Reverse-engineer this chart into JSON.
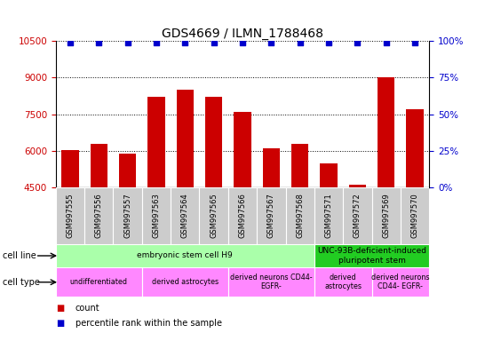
{
  "title": "GDS4669 / ILMN_1788468",
  "samples": [
    "GSM997555",
    "GSM997556",
    "GSM997557",
    "GSM997563",
    "GSM997564",
    "GSM997565",
    "GSM997566",
    "GSM997567",
    "GSM997568",
    "GSM997571",
    "GSM997572",
    "GSM997569",
    "GSM997570"
  ],
  "counts": [
    6050,
    6300,
    5900,
    8200,
    8500,
    8200,
    7600,
    6100,
    6300,
    5500,
    4600,
    9000,
    7700
  ],
  "percentiles": [
    99,
    99,
    99,
    99,
    99,
    99,
    99,
    99,
    99,
    99,
    99,
    99,
    99
  ],
  "ylim_left": [
    4500,
    10500
  ],
  "ylim_right": [
    0,
    100
  ],
  "yticks_left": [
    4500,
    6000,
    7500,
    9000,
    10500
  ],
  "yticks_right": [
    0,
    25,
    50,
    75,
    100
  ],
  "bar_color": "#cc0000",
  "dot_color": "#0000cc",
  "cell_line_groups": [
    {
      "label": "embryonic stem cell H9",
      "start": 0,
      "end": 9,
      "color": "#aaffaa"
    },
    {
      "label": "UNC-93B-deficient-induced\npluripotent stem",
      "start": 9,
      "end": 13,
      "color": "#22cc22"
    }
  ],
  "cell_type_groups": [
    {
      "label": "undifferentiated",
      "start": 0,
      "end": 3,
      "color": "#ff88ff"
    },
    {
      "label": "derived astrocytes",
      "start": 3,
      "end": 6,
      "color": "#ff88ff"
    },
    {
      "label": "derived neurons CD44-\nEGFR-",
      "start": 6,
      "end": 9,
      "color": "#ff88ff"
    },
    {
      "label": "derived\nastrocytes",
      "start": 9,
      "end": 11,
      "color": "#ff88ff"
    },
    {
      "label": "derived neurons\nCD44- EGFR-",
      "start": 11,
      "end": 13,
      "color": "#ff88ff"
    }
  ],
  "legend_count_color": "#cc0000",
  "legend_pct_color": "#0000cc",
  "bg_color": "#ffffff",
  "sample_bg": "#cccccc"
}
